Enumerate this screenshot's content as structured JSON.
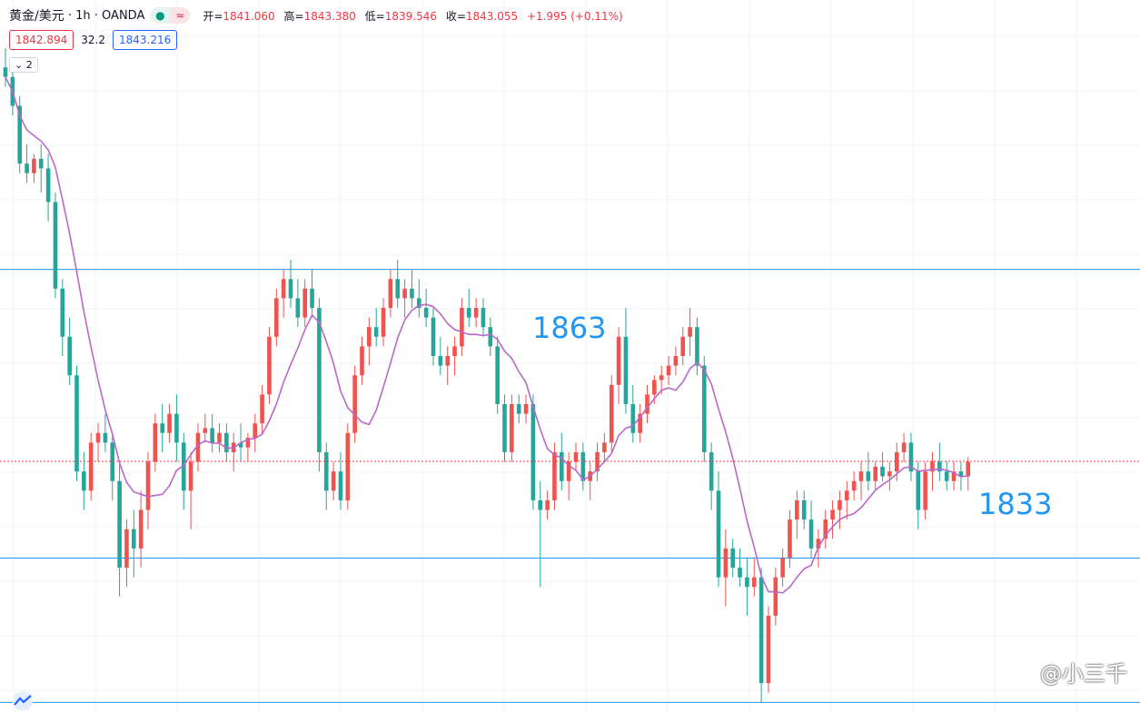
{
  "header": {
    "symbol": "黄金/美元",
    "interval": "1h",
    "source": "OANDA",
    "open_label": "开=",
    "open": "1841.060",
    "high_label": "高=",
    "high": "1843.380",
    "low_label": "低=",
    "low": "1839.546",
    "close_label": "收=",
    "close": "1843.055",
    "change": "+1.995 (+0.11%)"
  },
  "quote": {
    "bid": "1842.894",
    "spread": "32.2",
    "ask": "1843.216"
  },
  "toggle_label": "2",
  "levels": [
    {
      "label": "1863",
      "price": 1863
    },
    {
      "label": "1833",
      "price": 1833
    },
    {
      "label": "",
      "price": 1818
    }
  ],
  "watermark": "@小三千",
  "colors": {
    "up": "#ef5350",
    "down": "#26a69a",
    "ma": "#ba68c8",
    "level": "#2196f3",
    "current": "#f23645"
  },
  "chart_data": {
    "type": "candlestick",
    "title": "",
    "y_range": [
      1817,
      1891
    ],
    "current_price": 1843.055,
    "ma_period_label": "2",
    "candles": [
      [
        1884.0,
        1886.0,
        1882.0,
        1883.0
      ],
      [
        1883.0,
        1884.0,
        1879.0,
        1880.0
      ],
      [
        1880.0,
        1881.0,
        1873.0,
        1874.0
      ],
      [
        1874.0,
        1876.0,
        1872.0,
        1873.0
      ],
      [
        1873.0,
        1875.0,
        1872.0,
        1874.5
      ],
      [
        1874.5,
        1876.0,
        1871.0,
        1873.5
      ],
      [
        1873.5,
        1875.0,
        1868.0,
        1870.0
      ],
      [
        1870.0,
        1871.0,
        1860.0,
        1861.0
      ],
      [
        1861.0,
        1862.0,
        1854.0,
        1856.0
      ],
      [
        1856.0,
        1858.0,
        1851.0,
        1852.0
      ],
      [
        1852.0,
        1853.0,
        1841.0,
        1842.0
      ],
      [
        1842.0,
        1844.0,
        1838.0,
        1840.0
      ],
      [
        1840.0,
        1846.0,
        1839.0,
        1845.0
      ],
      [
        1845.0,
        1847.0,
        1843.0,
        1846.0
      ],
      [
        1846.0,
        1848.0,
        1844.0,
        1845.0
      ],
      [
        1845.0,
        1846.0,
        1839.0,
        1841.0
      ],
      [
        1841.0,
        1843.0,
        1829.0,
        1832.0
      ],
      [
        1832.0,
        1837.0,
        1830.0,
        1836.0
      ],
      [
        1836.0,
        1838.0,
        1831.0,
        1834.0
      ],
      [
        1834.0,
        1840.0,
        1832.0,
        1838.0
      ],
      [
        1838.0,
        1844.0,
        1836.0,
        1843.0
      ],
      [
        1843.0,
        1848.0,
        1842.0,
        1847.0
      ],
      [
        1847.0,
        1849.0,
        1844.0,
        1846.0
      ],
      [
        1846.0,
        1849.0,
        1845.0,
        1848.0
      ],
      [
        1848.0,
        1850.0,
        1843.0,
        1845.0
      ],
      [
        1845.0,
        1846.0,
        1838.0,
        1840.0
      ],
      [
        1840.0,
        1844.0,
        1836.0,
        1843.0
      ],
      [
        1843.0,
        1847.0,
        1842.0,
        1846.0
      ],
      [
        1846.0,
        1848.0,
        1845.0,
        1846.5
      ],
      [
        1846.5,
        1848.0,
        1844.0,
        1845.0
      ],
      [
        1845.0,
        1847.0,
        1844.0,
        1846.0
      ],
      [
        1846.0,
        1847.0,
        1843.0,
        1844.0
      ],
      [
        1844.0,
        1846.0,
        1842.0,
        1845.0
      ],
      [
        1845.0,
        1847.0,
        1843.0,
        1844.5
      ],
      [
        1844.5,
        1846.0,
        1843.0,
        1845.5
      ],
      [
        1845.5,
        1848.0,
        1844.0,
        1847.0
      ],
      [
        1847.0,
        1851.0,
        1846.0,
        1850.0
      ],
      [
        1850.0,
        1857.0,
        1849.0,
        1856.0
      ],
      [
        1856.0,
        1861.0,
        1855.0,
        1860.0
      ],
      [
        1860.0,
        1863.0,
        1858.0,
        1862.0
      ],
      [
        1862.0,
        1864.0,
        1859.0,
        1860.0
      ],
      [
        1860.0,
        1862.0,
        1857.0,
        1858.0
      ],
      [
        1858.0,
        1862.0,
        1857.0,
        1861.0
      ],
      [
        1861.0,
        1863.0,
        1858.0,
        1859.0
      ],
      [
        1859.0,
        1860.0,
        1842.0,
        1844.0
      ],
      [
        1844.0,
        1845.0,
        1838.0,
        1840.0
      ],
      [
        1840.0,
        1843.0,
        1839.0,
        1842.0
      ],
      [
        1842.0,
        1844.0,
        1838.0,
        1839.0
      ],
      [
        1839.0,
        1847.0,
        1838.0,
        1846.0
      ],
      [
        1846.0,
        1853.0,
        1845.0,
        1852.0
      ],
      [
        1852.0,
        1856.0,
        1851.0,
        1855.0
      ],
      [
        1855.0,
        1858.0,
        1853.0,
        1857.0
      ],
      [
        1857.0,
        1859.0,
        1855.0,
        1856.0
      ],
      [
        1856.0,
        1860.0,
        1855.0,
        1859.0
      ],
      [
        1859.0,
        1863.0,
        1858.0,
        1862.0
      ],
      [
        1862.0,
        1864.0,
        1859.0,
        1860.0
      ],
      [
        1860.0,
        1862.0,
        1858.0,
        1861.0
      ],
      [
        1861.0,
        1863.0,
        1859.0,
        1860.0
      ],
      [
        1860.0,
        1862.0,
        1858.0,
        1859.0
      ],
      [
        1859.0,
        1861.0,
        1857.0,
        1858.0
      ],
      [
        1858.0,
        1859.0,
        1853.0,
        1854.0
      ],
      [
        1854.0,
        1856.0,
        1852.0,
        1853.0
      ],
      [
        1853.0,
        1855.0,
        1851.0,
        1854.0
      ],
      [
        1854.0,
        1856.0,
        1852.0,
        1855.0
      ],
      [
        1855.0,
        1860.0,
        1854.0,
        1859.0
      ],
      [
        1859.0,
        1861.0,
        1857.0,
        1858.0
      ],
      [
        1858.0,
        1860.0,
        1857.0,
        1859.0
      ],
      [
        1859.0,
        1860.0,
        1856.0,
        1857.0
      ],
      [
        1857.0,
        1858.0,
        1854.0,
        1855.0
      ],
      [
        1855.0,
        1856.0,
        1848.0,
        1849.0
      ],
      [
        1849.0,
        1850.0,
        1843.0,
        1844.0
      ],
      [
        1844.0,
        1850.0,
        1843.0,
        1849.0
      ],
      [
        1849.0,
        1850.0,
        1847.0,
        1848.0
      ],
      [
        1848.0,
        1850.0,
        1847.0,
        1849.0
      ],
      [
        1849.0,
        1850.0,
        1838.0,
        1839.0
      ],
      [
        1839.0,
        1841.0,
        1830.0,
        1838.0
      ],
      [
        1838.0,
        1840.0,
        1837.0,
        1839.0
      ],
      [
        1839.0,
        1845.0,
        1838.0,
        1844.0
      ],
      [
        1844.0,
        1846.0,
        1840.0,
        1841.0
      ],
      [
        1841.0,
        1844.0,
        1839.0,
        1843.0
      ],
      [
        1843.0,
        1845.0,
        1842.0,
        1844.0
      ],
      [
        1844.0,
        1845.0,
        1840.0,
        1841.0
      ],
      [
        1841.0,
        1843.0,
        1839.0,
        1842.0
      ],
      [
        1842.0,
        1845.0,
        1841.0,
        1844.0
      ],
      [
        1844.0,
        1846.0,
        1843.0,
        1845.0
      ],
      [
        1845.0,
        1852.0,
        1844.0,
        1851.0
      ],
      [
        1851.0,
        1857.0,
        1849.0,
        1856.0
      ],
      [
        1856.0,
        1859.0,
        1848.0,
        1849.0
      ],
      [
        1849.0,
        1851.0,
        1845.0,
        1846.0
      ],
      [
        1846.0,
        1849.0,
        1845.0,
        1848.0
      ],
      [
        1848.0,
        1851.0,
        1847.0,
        1850.0
      ],
      [
        1850.0,
        1852.0,
        1849.0,
        1851.5
      ],
      [
        1851.5,
        1853.0,
        1850.0,
        1852.0
      ],
      [
        1852.0,
        1854.0,
        1851.0,
        1853.0
      ],
      [
        1853.0,
        1855.0,
        1852.0,
        1854.0
      ],
      [
        1854.0,
        1857.0,
        1853.0,
        1856.0
      ],
      [
        1856.0,
        1859.0,
        1854.0,
        1857.0
      ],
      [
        1857.0,
        1858.0,
        1852.0,
        1853.0
      ],
      [
        1853.0,
        1854.0,
        1843.0,
        1844.0
      ],
      [
        1844.0,
        1845.0,
        1838.0,
        1840.0
      ],
      [
        1840.0,
        1842.0,
        1830.0,
        1831.0
      ],
      [
        1831.0,
        1836.0,
        1828.0,
        1834.0
      ],
      [
        1834.0,
        1835.0,
        1831.0,
        1832.0
      ],
      [
        1832.0,
        1834.0,
        1830.0,
        1831.0
      ],
      [
        1831.0,
        1833.0,
        1827.0,
        1830.0
      ],
      [
        1830.0,
        1833.0,
        1829.0,
        1831.0
      ],
      [
        1831.0,
        1832.0,
        1818.0,
        1820.0
      ],
      [
        1820.0,
        1828.0,
        1819.0,
        1827.0
      ],
      [
        1827.0,
        1832.0,
        1826.0,
        1831.0
      ],
      [
        1831.0,
        1834.0,
        1830.0,
        1833.0
      ],
      [
        1833.0,
        1838.0,
        1832.0,
        1837.0
      ],
      [
        1837.0,
        1840.0,
        1835.0,
        1839.0
      ],
      [
        1839.0,
        1840.0,
        1836.0,
        1837.0
      ],
      [
        1837.0,
        1839.0,
        1833.0,
        1834.0
      ],
      [
        1834.0,
        1836.0,
        1832.0,
        1835.0
      ],
      [
        1835.0,
        1838.0,
        1834.0,
        1837.0
      ],
      [
        1837.0,
        1839.0,
        1835.0,
        1838.0
      ],
      [
        1838.0,
        1840.0,
        1836.0,
        1839.0
      ],
      [
        1839.0,
        1841.0,
        1837.0,
        1840.0
      ],
      [
        1840.0,
        1842.0,
        1839.0,
        1841.0
      ],
      [
        1841.0,
        1843.0,
        1839.0,
        1842.0
      ],
      [
        1842.0,
        1844.0,
        1840.0,
        1841.0
      ],
      [
        1841.0,
        1843.0,
        1840.0,
        1842.5
      ],
      [
        1842.5,
        1844.0,
        1841.0,
        1841.5
      ],
      [
        1841.5,
        1843.0,
        1840.0,
        1842.0
      ],
      [
        1842.0,
        1845.0,
        1841.0,
        1844.0
      ],
      [
        1844.0,
        1846.0,
        1843.0,
        1845.0
      ],
      [
        1845.0,
        1846.0,
        1841.0,
        1842.0
      ],
      [
        1842.0,
        1843.0,
        1836.0,
        1838.0
      ],
      [
        1838.0,
        1843.0,
        1837.0,
        1842.0
      ],
      [
        1842.0,
        1844.0,
        1840.0,
        1843.0
      ],
      [
        1843.0,
        1845.0,
        1841.0,
        1842.0
      ],
      [
        1842.0,
        1843.0,
        1840.0,
        1841.0
      ],
      [
        1841.0,
        1843.0,
        1840.0,
        1842.0
      ],
      [
        1842.0,
        1843.0,
        1840.0,
        1841.5
      ],
      [
        1841.5,
        1843.5,
        1840.0,
        1843.0
      ]
    ]
  }
}
